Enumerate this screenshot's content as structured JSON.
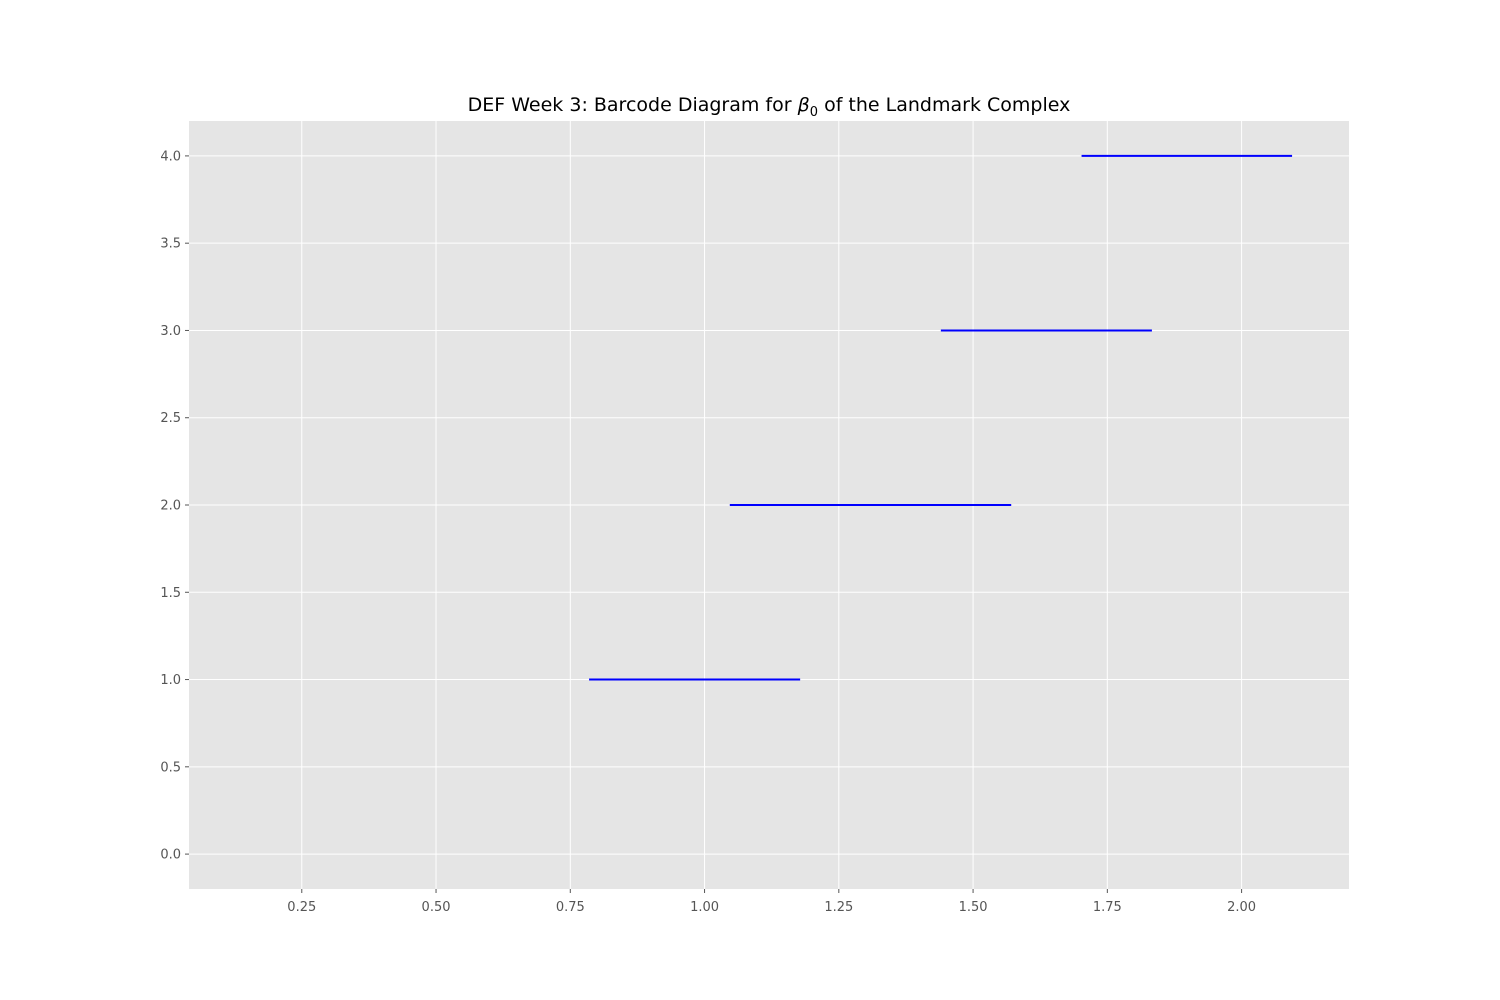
{
  "chart_data": {
    "type": "barcode",
    "title": {
      "prefix": "DEF Week 3: Barcode Diagram for ",
      "symbol": "β",
      "subscript": "0",
      "suffix": " of the Landmark Complex"
    },
    "xlabel": "",
    "ylabel": "",
    "xlim": [
      0.04,
      2.2
    ],
    "ylim": [
      -0.2,
      4.2
    ],
    "xticks": [
      0.25,
      0.5,
      0.75,
      1.0,
      1.25,
      1.5,
      1.75,
      2.0
    ],
    "xtick_labels": [
      "0.25",
      "0.50",
      "0.75",
      "1.00",
      "1.25",
      "1.50",
      "1.75",
      "2.00"
    ],
    "yticks": [
      0.0,
      0.5,
      1.0,
      1.5,
      2.0,
      2.5,
      3.0,
      3.5,
      4.0
    ],
    "ytick_labels": [
      "0.0",
      "0.5",
      "1.0",
      "1.5",
      "2.0",
      "2.5",
      "3.0",
      "3.5",
      "4.0"
    ],
    "grid": true,
    "bars": [
      {
        "y": 1,
        "birth": 0.785,
        "death": 1.178
      },
      {
        "y": 2,
        "birth": 1.047,
        "death": 1.571
      },
      {
        "y": 3,
        "birth": 1.44,
        "death": 1.833
      },
      {
        "y": 4,
        "birth": 1.702,
        "death": 2.094
      }
    ],
    "colors": {
      "bar": "#0000ff",
      "plot_background": "#e5e5e5",
      "grid": "#ffffff",
      "tick_label": "#555555"
    }
  }
}
